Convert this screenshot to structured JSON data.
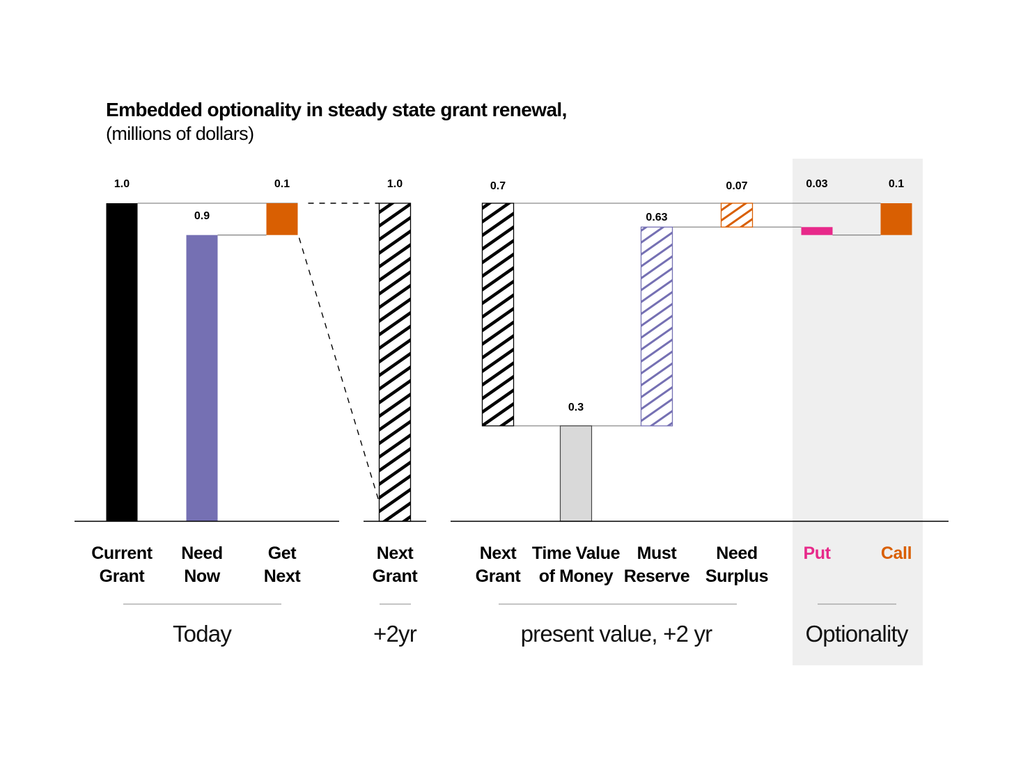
{
  "chart_data": {
    "type": "bar",
    "title": "Embedded optionality in steady state grant renewal,",
    "subtitle": "(millions of dollars)",
    "colors": {
      "black": "#000000",
      "purple": "#7570b3",
      "orange": "#d95f02",
      "pink": "#e7298a",
      "gray": "#d9d9d9",
      "panel": "#efefef"
    },
    "bars": [
      {
        "key": "current_grant",
        "label": [
          "Current",
          "Grant"
        ],
        "value_label": "1.0",
        "base": 0,
        "top": 1.0,
        "fill": "solid",
        "color": "black",
        "label_color": "black"
      },
      {
        "key": "need_now",
        "label": [
          "Need",
          "Now"
        ],
        "value_label": "0.9",
        "base": 0,
        "top": 0.9,
        "fill": "solid",
        "color": "purple",
        "label_color": "black"
      },
      {
        "key": "get_next",
        "label": [
          "Get",
          "Next"
        ],
        "value_label": "0.1",
        "base": 0.9,
        "top": 1.0,
        "fill": "solid",
        "color": "orange",
        "label_color": "black"
      },
      {
        "key": "next_grant_future",
        "label": [
          "Next",
          "Grant"
        ],
        "value_label": "1.0",
        "base": 0,
        "top": 1.0,
        "fill": "hatch",
        "color": "black",
        "label_color": "black"
      },
      {
        "key": "next_grant_pv",
        "label": [
          "Next",
          "Grant"
        ],
        "value_label": "0.7",
        "base": 0.3,
        "top": 1.0,
        "fill": "hatch",
        "color": "black",
        "label_color": "black"
      },
      {
        "key": "time_value",
        "label": [
          "Time Value",
          "of Money"
        ],
        "value_label": "0.3",
        "base": 0,
        "top": 0.3,
        "fill": "solid",
        "color": "gray",
        "label_color": "black"
      },
      {
        "key": "must_reserve",
        "label": [
          "Must",
          "Reserve"
        ],
        "value_label": "0.63",
        "base": 0.3,
        "top": 0.925,
        "fill": "hatch",
        "color": "purple",
        "label_color": "black"
      },
      {
        "key": "need_surplus",
        "label": [
          "Need",
          "Surplus"
        ],
        "value_label": "0.07",
        "base": 0.925,
        "top": 1.0,
        "fill": "hatch",
        "color": "orange",
        "label_color": "black"
      },
      {
        "key": "put",
        "label": [
          "Put"
        ],
        "value_label": "0.03",
        "base": 0.9,
        "top": 0.925,
        "fill": "solid",
        "color": "pink",
        "label_color": "pink"
      },
      {
        "key": "call",
        "label": [
          "Call"
        ],
        "value_label": "0.1",
        "base": 0.9,
        "top": 1.0,
        "fill": "solid",
        "color": "orange",
        "label_color": "orange"
      }
    ],
    "groups": [
      {
        "key": "today",
        "label": "Today"
      },
      {
        "key": "plus2yr",
        "label": "+2yr"
      },
      {
        "key": "pv",
        "label": "present value, +2 yr"
      },
      {
        "key": "optionality",
        "label": "Optionality",
        "highlighted": true
      }
    ],
    "ylim": [
      0,
      1.0
    ]
  }
}
